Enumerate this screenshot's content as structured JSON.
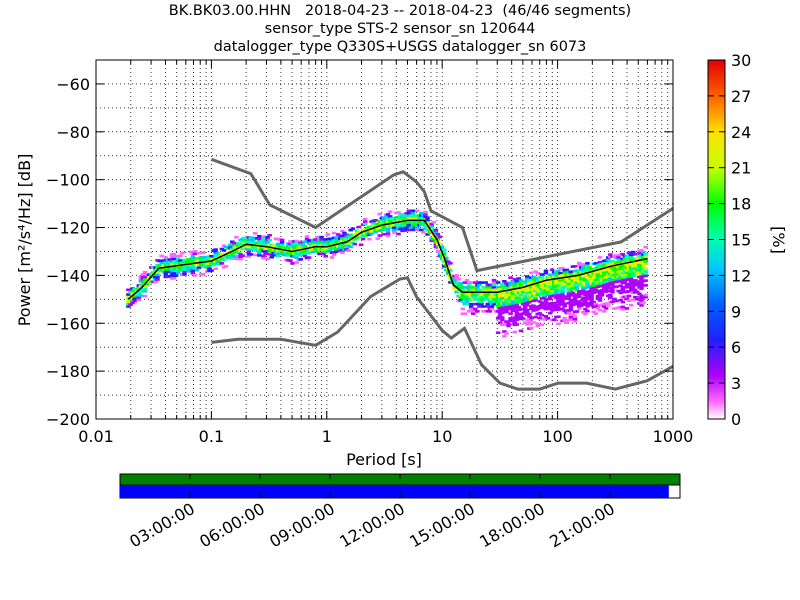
{
  "title": {
    "line1": "BK.BK03.00.HHN   2018-04-23 -- 2018-04-23  (46/46 segments)",
    "line2": "sensor_type STS-2 sensor_sn 120644",
    "line3": "datalogger_type Q330S+USGS datalogger_sn 6073"
  },
  "colors": {
    "model_lines": "#666666",
    "mean_line": "#000000",
    "coverage_data": "#008000",
    "coverage_segments": "#0000ff",
    "grid": "#000000"
  },
  "chart_data": {
    "type": "heatmap",
    "xlabel": "Period [s]",
    "ylabel": "Power [m²/s⁴/Hz] [dB]",
    "xscale": "log",
    "xlim": [
      0.01,
      1000
    ],
    "ylim": [
      -200,
      -50
    ],
    "x_ticks": [
      0.01,
      0.1,
      1,
      10,
      100,
      1000
    ],
    "x_tick_labels": [
      "0.01",
      "0.1",
      "1",
      "10",
      "100",
      "1000"
    ],
    "y_ticks": [
      -200,
      -180,
      -160,
      -140,
      -120,
      -100,
      -80,
      -60
    ],
    "y_tick_labels": [
      "−200",
      "−180",
      "−160",
      "−140",
      "−120",
      "−100",
      "−80",
      "−60"
    ],
    "grid": true,
    "colorbar": {
      "label": "[%]",
      "range": [
        0,
        30
      ],
      "ticks": [
        0,
        3,
        6,
        9,
        12,
        15,
        18,
        21,
        24,
        27,
        30
      ],
      "tick_labels": [
        "0",
        "3",
        "6",
        "9",
        "12",
        "15",
        "18",
        "21",
        "24",
        "27",
        "30"
      ]
    },
    "mode_curve": [
      [
        0.019,
        -150
      ],
      [
        0.025,
        -145
      ],
      [
        0.035,
        -137
      ],
      [
        0.05,
        -136
      ],
      [
        0.07,
        -135
      ],
      [
        0.1,
        -134
      ],
      [
        0.15,
        -130
      ],
      [
        0.2,
        -127
      ],
      [
        0.3,
        -128
      ],
      [
        0.5,
        -130
      ],
      [
        0.8,
        -128
      ],
      [
        1.0,
        -128
      ],
      [
        1.5,
        -126
      ],
      [
        2.0,
        -122
      ],
      [
        3.0,
        -119
      ],
      [
        5.0,
        -117
      ],
      [
        7.0,
        -117
      ],
      [
        9.0,
        -125
      ],
      [
        10.5,
        -133
      ],
      [
        12.5,
        -144
      ],
      [
        15.0,
        -147
      ],
      [
        20.0,
        -147
      ],
      [
        30.0,
        -147
      ],
      [
        50.0,
        -145
      ],
      [
        80.0,
        -142
      ],
      [
        150,
        -140
      ],
      [
        300,
        -136
      ],
      [
        600,
        -133
      ]
    ],
    "upper_model": [
      [
        0.1,
        -91.5
      ],
      [
        0.22,
        -97.5
      ],
      [
        0.32,
        -110.5
      ],
      [
        0.8,
        -120
      ],
      [
        3.8,
        -98
      ],
      [
        4.6,
        -96.7
      ],
      [
        6.0,
        -101
      ],
      [
        7.0,
        -105
      ],
      [
        8.0,
        -113
      ],
      [
        15.0,
        -120
      ],
      [
        20.0,
        -138
      ],
      [
        354.8,
        -126
      ],
      [
        1000,
        -112
      ]
    ],
    "lower_model": [
      [
        0.1,
        -168
      ],
      [
        0.17,
        -166.7
      ],
      [
        0.4,
        -166.7
      ],
      [
        0.8,
        -169.2
      ],
      [
        1.24,
        -163.7
      ],
      [
        2.4,
        -148.8
      ],
      [
        4.3,
        -141.5
      ],
      [
        5.0,
        -141
      ],
      [
        6.0,
        -149
      ],
      [
        10.0,
        -163
      ],
      [
        12.0,
        -166.2
      ],
      [
        15.6,
        -162.1
      ],
      [
        21.9,
        -177.3
      ],
      [
        31.6,
        -185
      ],
      [
        45.0,
        -187.5
      ],
      [
        70.0,
        -187.5
      ],
      [
        101,
        -185
      ],
      [
        178,
        -185
      ],
      [
        316,
        -187.5
      ],
      [
        600,
        -184
      ],
      [
        1000,
        -178
      ]
    ]
  },
  "coverage": {
    "time_labels": [
      "03:00:00",
      "06:00:00",
      "09:00:00",
      "12:00:00",
      "15:00:00",
      "18:00:00",
      "21:00:00"
    ],
    "data_fraction": 1.0,
    "segments_fraction": 0.98
  }
}
